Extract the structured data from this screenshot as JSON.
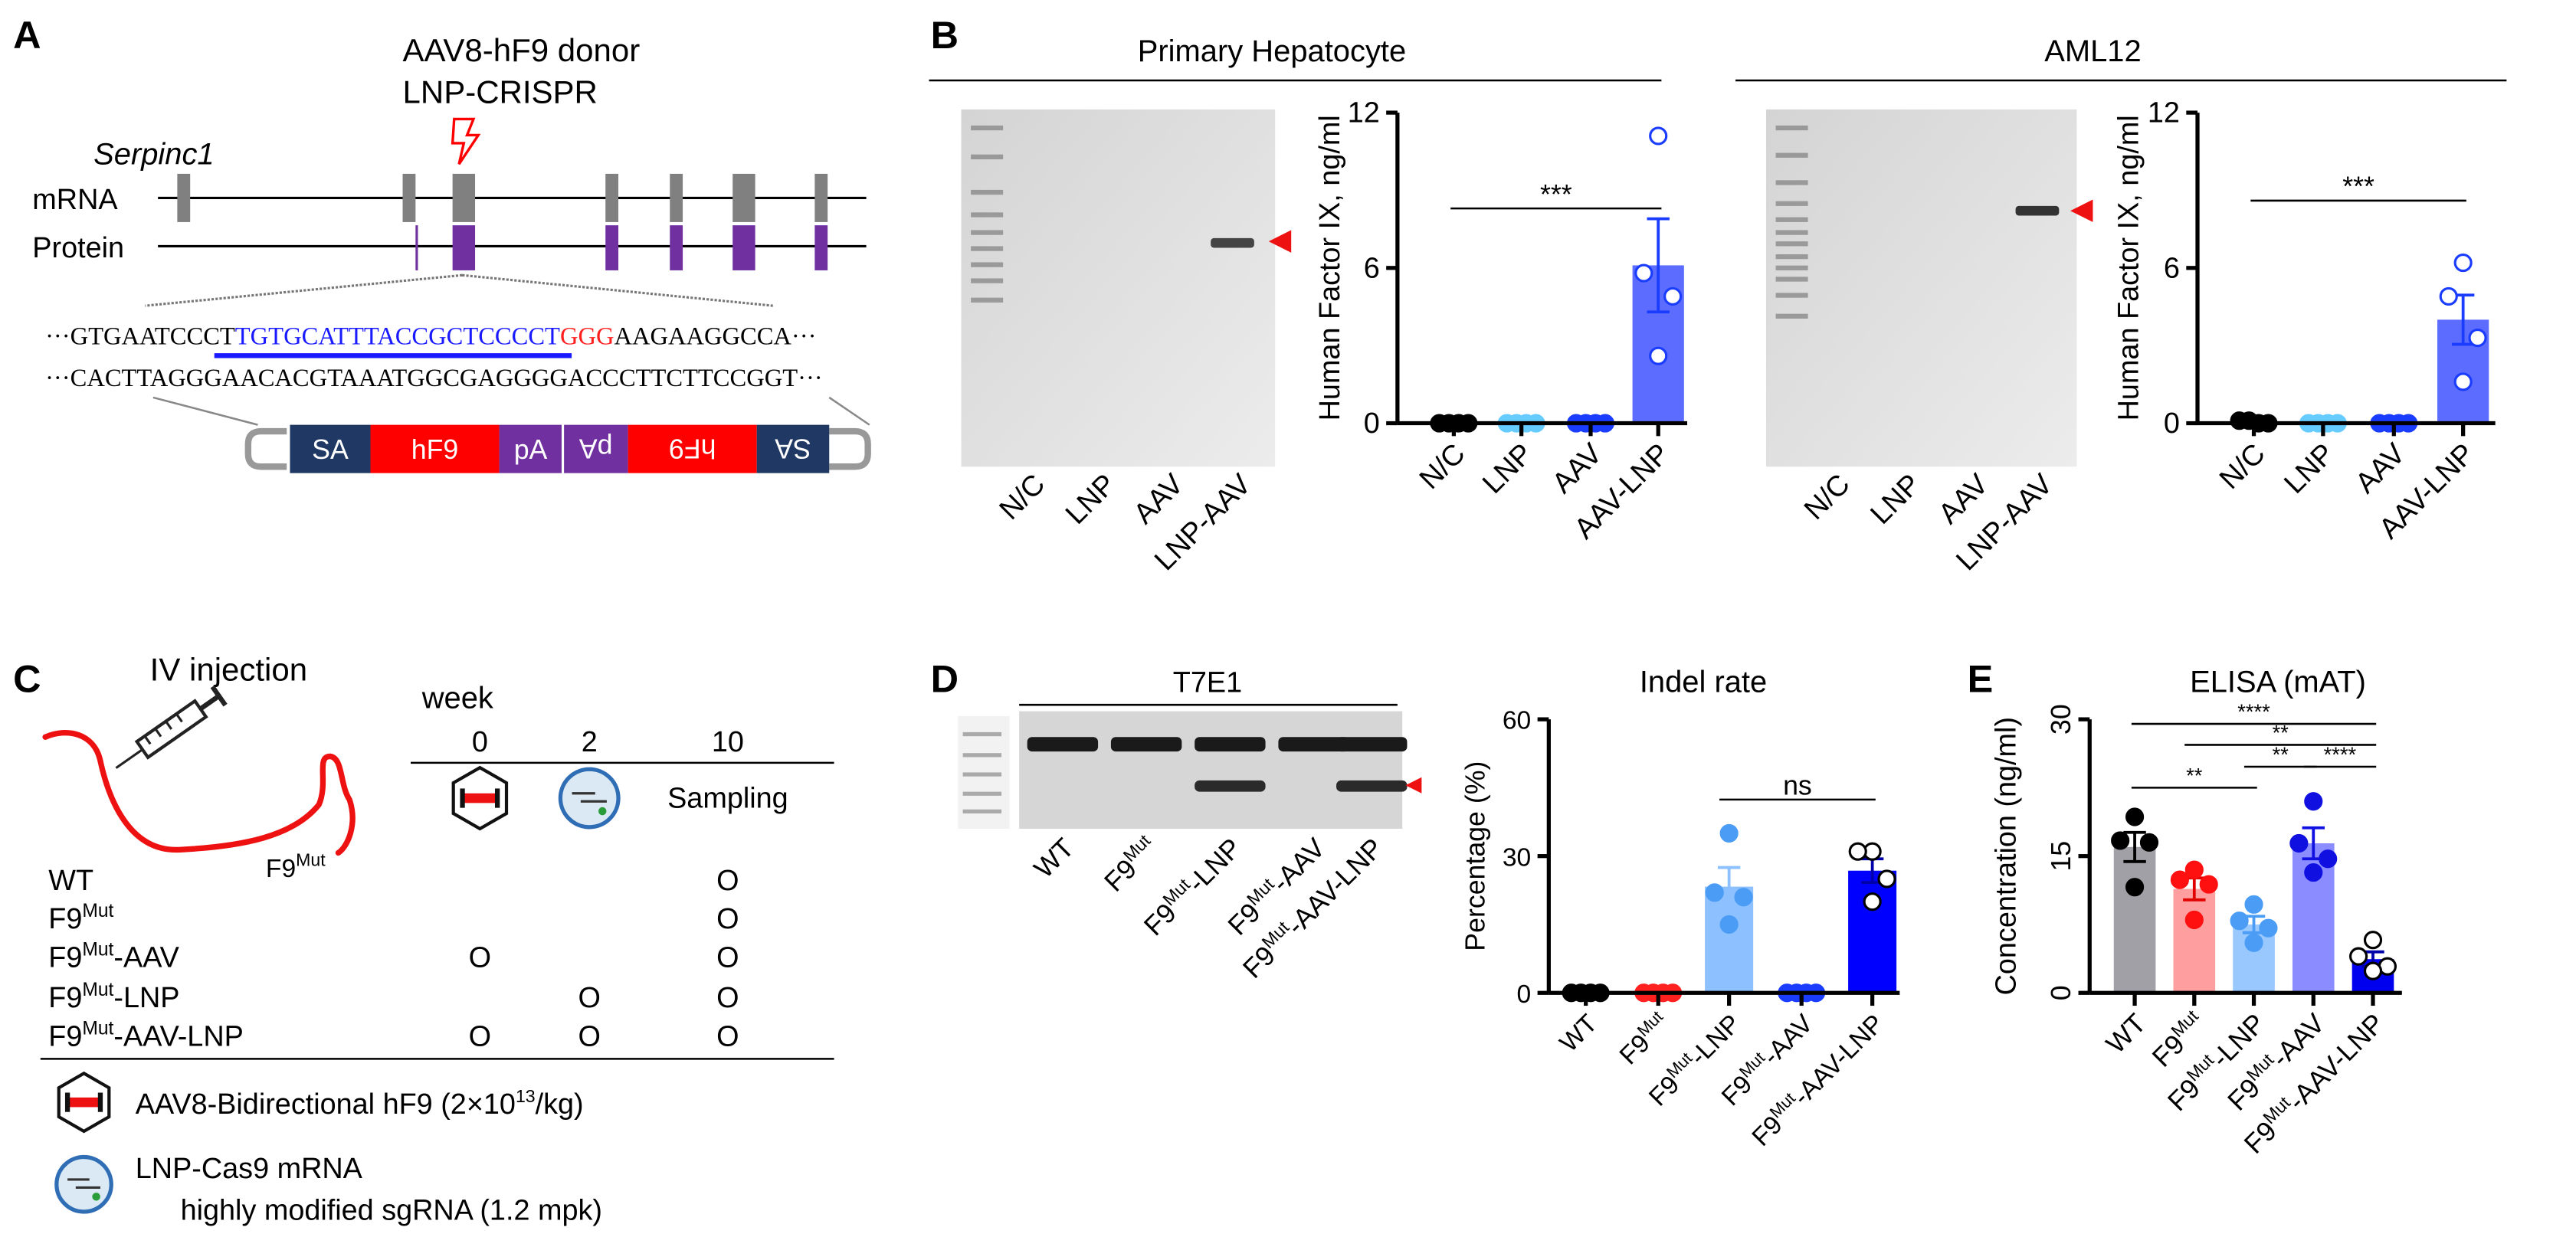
{
  "panels": {
    "a": "A",
    "b": "B",
    "c": "C",
    "d": "D",
    "e": "E"
  },
  "panel_a": {
    "donor_label": "AAV8-hF9 donor",
    "crispr_label": "LNP-CRISPR",
    "gene": "Serpinc1",
    "mrna_label": "mRNA",
    "protein_label": "Protein",
    "seq_top": {
      "prefix": "···GTGAATCCCT",
      "guide": "TGTGCATTTACCGCTCCCCT",
      "pam": "GGG",
      "suffix": "AAGAAGGCCA···"
    },
    "seq_bottom": "···CACTTAGGGAACACGTAAATGGCGAGGGGACCCTTCTTCCGGT···",
    "construct": [
      "SA",
      "hF9",
      "pA",
      "pA",
      "hF9",
      "SA"
    ],
    "colors": {
      "exon": "#808080",
      "protein": "#7030a0",
      "sa": "#1f3864",
      "hf9": "#ff0000",
      "guide": "#1a1aff",
      "pam": "#ff2020"
    }
  },
  "panel_b": {
    "left_title": "Primary Hepatocyte",
    "right_title": "AML12",
    "gel_lanes": [
      "N/C",
      "LNP",
      "AAV",
      "LNP-AAV"
    ]
  },
  "panel_c": {
    "injection_label": "IV injection",
    "mouse_label": {
      "base": "F9",
      "sup": "Mut"
    },
    "week_label": "week",
    "weeks": [
      "0",
      "2",
      "10"
    ],
    "sampling_label": "Sampling",
    "mark": "O",
    "groups": [
      {
        "base": "WT",
        "sup": "",
        "rest": "",
        "marks": [
          false,
          false,
          true
        ]
      },
      {
        "base": "F9",
        "sup": "Mut",
        "rest": "",
        "marks": [
          false,
          false,
          true
        ]
      },
      {
        "base": "F9",
        "sup": "Mut",
        "rest": "-AAV",
        "marks": [
          true,
          false,
          true
        ]
      },
      {
        "base": "F9",
        "sup": "Mut",
        "rest": "-LNP",
        "marks": [
          false,
          true,
          true
        ]
      },
      {
        "base": "F9",
        "sup": "Mut",
        "rest": "-AAV-LNP",
        "marks": [
          true,
          true,
          true
        ]
      }
    ],
    "legend_aav": {
      "text": "AAV8-Bidirectional hF9 (2×10",
      "sup": "13",
      "rest": "/kg)"
    },
    "legend_lnp_line1": "LNP-Cas9 mRNA",
    "legend_lnp_line2": "highly modified sgRNA (1.2 mpk)"
  },
  "panel_d": {
    "gel_title": "T7E1",
    "gel_lanes": [
      {
        "base": "WT",
        "sup": "",
        "rest": ""
      },
      {
        "base": "F9",
        "sup": "Mut",
        "rest": ""
      },
      {
        "base": "F9",
        "sup": "Mut",
        "rest": "-LNP"
      },
      {
        "base": "F9",
        "sup": "Mut",
        "rest": "-AAV"
      },
      {
        "base": "F9",
        "sup": "Mut",
        "rest": "-AAV-LNP"
      }
    ]
  },
  "chart_data": [
    {
      "id": "b-primary",
      "type": "bar",
      "title": "",
      "xlabel": "",
      "ylabel": "Human Factor IX, ng/ml",
      "ylim": [
        0,
        12
      ],
      "yticks": [
        0,
        6,
        12
      ],
      "categories": [
        {
          "base": "N/C",
          "sup": "",
          "rest": ""
        },
        {
          "base": "LNP",
          "sup": "",
          "rest": ""
        },
        {
          "base": "AAV",
          "sup": "",
          "rest": ""
        },
        {
          "base": "AAV-LNP",
          "sup": "",
          "rest": ""
        }
      ],
      "values": [
        0,
        0,
        0,
        6.1
      ],
      "sem": [
        0,
        0,
        0,
        1.8
      ],
      "points": [
        [
          0,
          0,
          0,
          0
        ],
        [
          0,
          0,
          0,
          0
        ],
        [
          0,
          0,
          0,
          0
        ],
        [
          11.1,
          5.8,
          4.9,
          2.6
        ]
      ],
      "bar_colors": [
        "#000000",
        "#66ccff",
        "#1a3cff",
        "#5b6cff"
      ],
      "point_colors": [
        "#000000",
        "#66ccff",
        "#1a3cff",
        "#ffffff"
      ],
      "point_strokes": [
        "#000000",
        "#66ccff",
        "#1a3cff",
        "#1a3cff"
      ],
      "error_colors": [
        "#000000",
        "#66ccff",
        "#1a3cff",
        "#1a3cff"
      ],
      "significance": [
        {
          "from": 0,
          "to": 3,
          "label": "***",
          "y": 8.3
        }
      ]
    },
    {
      "id": "b-aml12",
      "type": "bar",
      "title": "",
      "xlabel": "",
      "ylabel": "Human Factor IX, ng/ml",
      "ylim": [
        0,
        12
      ],
      "yticks": [
        0,
        6,
        12
      ],
      "categories": [
        {
          "base": "N/C",
          "sup": "",
          "rest": ""
        },
        {
          "base": "LNP",
          "sup": "",
          "rest": ""
        },
        {
          "base": "AAV",
          "sup": "",
          "rest": ""
        },
        {
          "base": "AAV-LNP",
          "sup": "",
          "rest": ""
        }
      ],
      "values": [
        0.05,
        0,
        0,
        4.0
      ],
      "sem": [
        0,
        0,
        0,
        0.95
      ],
      "points": [
        [
          0,
          0.1,
          0.1,
          0
        ],
        [
          0,
          0,
          0,
          0
        ],
        [
          0,
          0,
          0,
          0
        ],
        [
          6.2,
          4.9,
          3.3,
          1.6
        ]
      ],
      "bar_colors": [
        "#000000",
        "#66ccff",
        "#1a3cff",
        "#5b6cff"
      ],
      "point_colors": [
        "#000000",
        "#66ccff",
        "#1a3cff",
        "#ffffff"
      ],
      "point_strokes": [
        "#000000",
        "#66ccff",
        "#1a3cff",
        "#1a3cff"
      ],
      "error_colors": [
        "#000000",
        "#66ccff",
        "#1a3cff",
        "#1a3cff"
      ],
      "significance": [
        {
          "from": 0,
          "to": 3,
          "label": "***",
          "y": 8.6
        }
      ]
    },
    {
      "id": "d-indel",
      "type": "bar",
      "title": "Indel rate",
      "xlabel": "",
      "ylabel": "Percentage (%)",
      "ylim": [
        0,
        60
      ],
      "yticks": [
        0,
        30,
        60
      ],
      "categories": [
        {
          "base": "WT",
          "sup": "",
          "rest": ""
        },
        {
          "base": "F9",
          "sup": "Mut",
          "rest": ""
        },
        {
          "base": "F9",
          "sup": "Mut",
          "rest": "-LNP"
        },
        {
          "base": "F9",
          "sup": "Mut",
          "rest": "-AAV"
        },
        {
          "base": "F9",
          "sup": "Mut",
          "rest": "-AAV-LNP"
        }
      ],
      "values": [
        0,
        0,
        23.3,
        0,
        26.8
      ],
      "sem": [
        0,
        0,
        4.2,
        0,
        2.6
      ],
      "points": [
        [
          0,
          0,
          0,
          0
        ],
        [
          0,
          0,
          0,
          0
        ],
        [
          35,
          22,
          21,
          15
        ],
        [
          0,
          0,
          0,
          0
        ],
        [
          31,
          31,
          25,
          20
        ]
      ],
      "bar_colors": [
        "#000000",
        "#ff2020",
        "#8cc0ff",
        "#1a3cff",
        "#0000ff"
      ],
      "point_colors": [
        "#000000",
        "#ff2020",
        "#4a9cf5",
        "#1a3cff",
        "#ffffff"
      ],
      "point_strokes": [
        "#000000",
        "#ff2020",
        "#4a9cf5",
        "#1a3cff",
        "#000000"
      ],
      "error_colors": [
        "#000000",
        "#ff2020",
        "#8cc0ff",
        "#1a3cff",
        "#0000aa"
      ],
      "significance": [
        {
          "from": 2,
          "to": 4,
          "label": "ns",
          "y": 42.4
        }
      ]
    },
    {
      "id": "e-elisa",
      "type": "bar",
      "title": "ELISA (mAT)",
      "xlabel": "",
      "ylabel": "Concentration (ng/ml)",
      "ylim": [
        0,
        30
      ],
      "yticks": [
        0,
        15,
        30
      ],
      "categories": [
        {
          "base": "WT",
          "sup": "",
          "rest": ""
        },
        {
          "base": "F9",
          "sup": "Mut",
          "rest": ""
        },
        {
          "base": "F9",
          "sup": "Mut",
          "rest": "-LNP"
        },
        {
          "base": "F9",
          "sup": "Mut",
          "rest": "-AAV"
        },
        {
          "base": "F9",
          "sup": "Mut",
          "rest": "-AAV-LNP"
        }
      ],
      "values": [
        16.0,
        11.4,
        7.5,
        16.4,
        3.7
      ],
      "sem": [
        1.6,
        1.2,
        0.9,
        1.7,
        0.8
      ],
      "points": [
        [
          19.3,
          16.7,
          16.5,
          11.6
        ],
        [
          13.5,
          12.4,
          11.9,
          8.0
        ],
        [
          9.7,
          7.9,
          7.1,
          5.5
        ],
        [
          21.0,
          16.4,
          14.7,
          13.2
        ],
        [
          5.8,
          4.0,
          2.9,
          2.4
        ]
      ],
      "bar_colors": [
        "#a0a0a6",
        "#ff9e9e",
        "#99c8ff",
        "#8a8cff",
        "#0000ee"
      ],
      "point_colors": [
        "#000000",
        "#ff1010",
        "#4a9cf5",
        "#1010e0",
        "#ffffff"
      ],
      "point_strokes": [
        "#000000",
        "#ff1010",
        "#4a9cf5",
        "#1010e0",
        "#000000"
      ],
      "error_colors": [
        "#000000",
        "#e00000",
        "#4a9cf5",
        "#1010e0",
        "#0000aa"
      ],
      "significance": [
        {
          "from": 0,
          "to": 4,
          "label": "****",
          "y": 29.5
        },
        {
          "from": 1,
          "to": 4,
          "label": "**",
          "y": 27.2
        },
        {
          "from": 2,
          "to": 3,
          "label": "**",
          "y": 24.8
        },
        {
          "from": 3,
          "to": 4,
          "label": "****",
          "y": 24.8
        },
        {
          "from": 0,
          "to": 2,
          "label": "**",
          "y": 22.5
        }
      ]
    }
  ]
}
